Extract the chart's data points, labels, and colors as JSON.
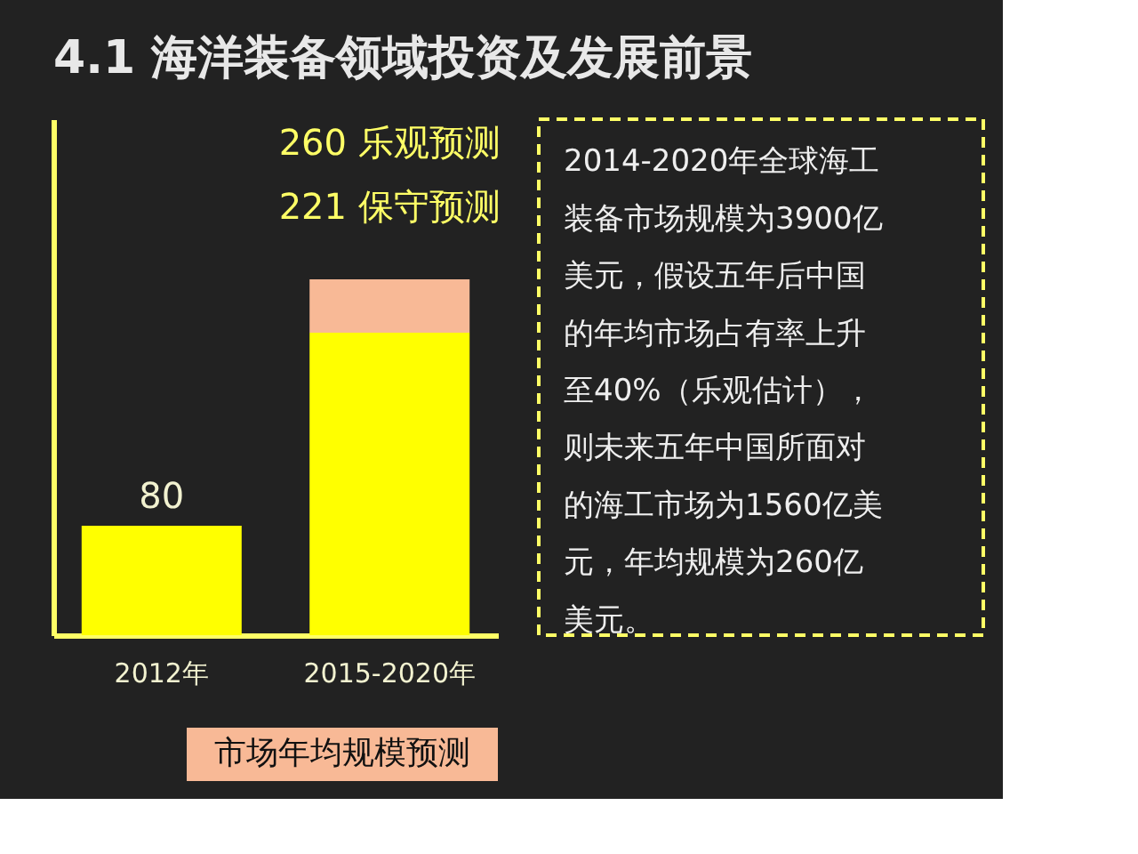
{
  "chart_data": {
    "type": "bar",
    "title": "4.1 海洋装备领域投资及发展前景",
    "categories": [
      "2012年",
      "2015-2020年"
    ],
    "xlabel": "市场年均规模预测",
    "stacked": true,
    "series": [
      {
        "color": "#ffff00",
        "values": [
          80,
          221
        ],
        "value_labels": [
          "80",
          null
        ]
      },
      {
        "color": "#f8b996",
        "values": [
          null,
          39
        ]
      }
    ],
    "annotations": [
      "260 乐观预测",
      "221 保守预测",
      "2014-2020年全球海工装备市场规模为3900亿美元，假设五年后中国的年均市场占有率上升至40%（乐观估计），则未来五年中国所面对的海工市场为1560亿美元，年均规模为260亿美元。"
    ],
    "tick_labels": "x",
    "grid": false,
    "legend": false
  }
}
